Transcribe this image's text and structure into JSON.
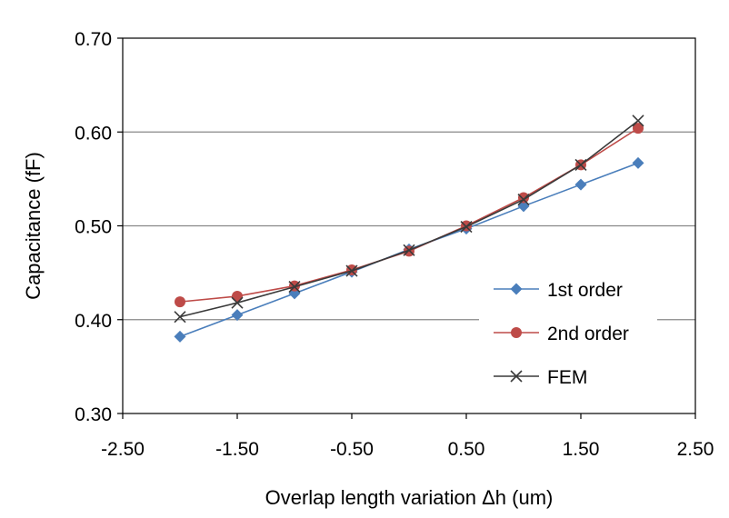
{
  "chart_data": {
    "type": "line",
    "title": "",
    "xlabel": "Overlap length variation Δh (um)",
    "ylabel": "Capacitance (fF)",
    "xlim": [
      -2.5,
      2.5
    ],
    "ylim": [
      0.3,
      0.7
    ],
    "xticks": [
      -2.5,
      -1.5,
      -0.5,
      0.5,
      1.5,
      2.5
    ],
    "xtick_labels": [
      "-2.50",
      "-1.50",
      "-0.50",
      "0.50",
      "1.50",
      "2.50"
    ],
    "yticks": [
      0.3,
      0.4,
      0.5,
      0.6,
      0.7
    ],
    "ytick_labels": [
      "0.30",
      "0.40",
      "0.50",
      "0.60",
      "0.70"
    ],
    "grid": "horizontal",
    "legend_position": "bottom-right",
    "x": [
      -2.0,
      -1.5,
      -1.0,
      -0.5,
      0.0,
      0.5,
      1.0,
      1.5,
      2.0
    ],
    "series": [
      {
        "name": "1st order",
        "marker": "diamond",
        "color": "#4a7ebb",
        "values": [
          0.382,
          0.405,
          0.428,
          0.451,
          0.475,
          0.497,
          0.521,
          0.544,
          0.567
        ]
      },
      {
        "name": "2nd order",
        "marker": "circle",
        "color": "#be4b48",
        "values": [
          0.419,
          0.425,
          0.436,
          0.453,
          0.473,
          0.5,
          0.53,
          0.565,
          0.604
        ]
      },
      {
        "name": "FEM",
        "marker": "x",
        "color": "#3a3a3a",
        "values": [
          0.403,
          0.418,
          0.435,
          0.452,
          0.474,
          0.499,
          0.528,
          0.565,
          0.612
        ]
      }
    ]
  }
}
